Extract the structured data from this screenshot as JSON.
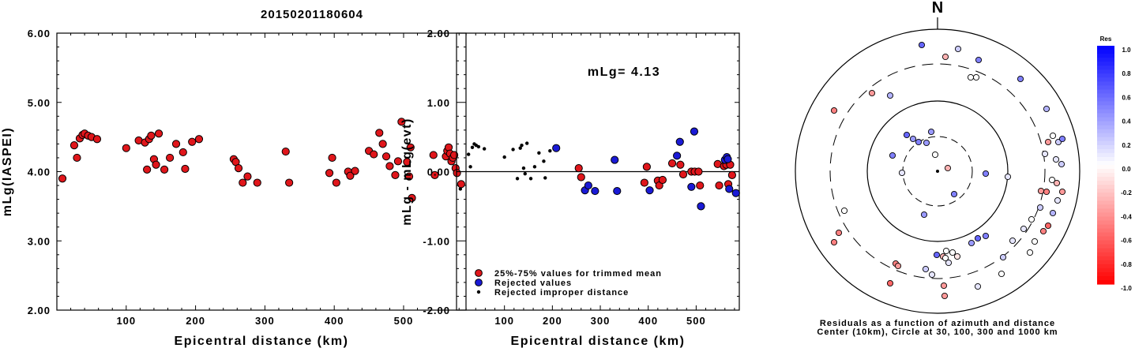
{
  "page_title": "20150201180604",
  "chart_data": [
    {
      "type": "scatter",
      "name": "magnitude-vs-distance",
      "xlabel": "Epicentral distance (km)",
      "ylabel": "mLg(IASPEI)",
      "xlim": [
        0,
        590
      ],
      "ylim": [
        2.0,
        6.0
      ],
      "xticks": [
        "100",
        "200",
        "300",
        "400",
        "500"
      ],
      "xtick_values": [
        100,
        200,
        300,
        400,
        500
      ],
      "yticks": [
        "2.00",
        "3.00",
        "4.00",
        "5.00",
        "6.00"
      ],
      "ytick_values": [
        2.0,
        3.0,
        4.0,
        5.0,
        6.0
      ],
      "marker_color": "#e0161b",
      "points": [
        [
          8,
          3.9
        ],
        [
          25,
          4.38
        ],
        [
          29,
          4.2
        ],
        [
          33,
          4.48
        ],
        [
          37,
          4.53
        ],
        [
          40,
          4.55
        ],
        [
          45,
          4.52
        ],
        [
          50,
          4.5
        ],
        [
          58,
          4.47
        ],
        [
          100,
          4.34
        ],
        [
          118,
          4.45
        ],
        [
          127,
          4.42
        ],
        [
          130,
          4.03
        ],
        [
          133,
          4.47
        ],
        [
          136,
          4.52
        ],
        [
          140,
          4.18
        ],
        [
          143,
          4.1
        ],
        [
          147,
          4.55
        ],
        [
          155,
          4.03
        ],
        [
          163,
          4.2
        ],
        [
          172,
          4.4
        ],
        [
          182,
          4.28
        ],
        [
          185,
          4.04
        ],
        [
          195,
          4.43
        ],
        [
          205,
          4.47
        ],
        [
          255,
          4.18
        ],
        [
          258,
          4.14
        ],
        [
          262,
          4.05
        ],
        [
          268,
          3.84
        ],
        [
          275,
          3.93
        ],
        [
          289,
          3.84
        ],
        [
          330,
          4.29
        ],
        [
          335,
          3.84
        ],
        [
          393,
          3.98
        ],
        [
          397,
          4.2
        ],
        [
          403,
          3.84
        ],
        [
          420,
          4.0
        ],
        [
          423,
          3.94
        ],
        [
          430,
          4.01
        ],
        [
          450,
          4.3
        ],
        [
          457,
          4.25
        ],
        [
          465,
          4.56
        ],
        [
          470,
          4.4
        ],
        [
          475,
          4.22
        ],
        [
          480,
          4.08
        ],
        [
          488,
          3.95
        ],
        [
          492,
          4.15
        ],
        [
          497,
          4.72
        ],
        [
          505,
          4.14
        ],
        [
          508,
          3.93
        ],
        [
          510,
          4.35
        ],
        [
          512,
          3.62
        ],
        [
          543,
          4.24
        ],
        [
          545,
          3.95
        ],
        [
          561,
          4.22
        ],
        [
          563,
          4.3
        ],
        [
          565,
          4.35
        ],
        [
          567,
          4.26
        ],
        [
          569,
          4.15
        ],
        [
          571,
          4.2
        ],
        [
          573,
          4.24
        ],
        [
          575,
          4.05
        ],
        [
          577,
          3.98
        ],
        [
          583,
          3.82
        ]
      ]
    },
    {
      "type": "scatter",
      "name": "residual-vs-distance",
      "xlabel": "Epicentral distance (km)",
      "ylabel": "mLg - mLg(evt)",
      "xlim": [
        0,
        590
      ],
      "ylim": [
        -2.0,
        2.0
      ],
      "xticks": [
        "100",
        "200",
        "300",
        "400",
        "500"
      ],
      "xtick_values": [
        100,
        200,
        300,
        400,
        500
      ],
      "yticks": [
        "-2.00",
        "-1.00",
        "0.00",
        "1.00",
        "2.00"
      ],
      "ytick_values": [
        -2.0,
        -1.0,
        0.0,
        1.0,
        2.0
      ],
      "annotation": "mLg= 4.13",
      "legend": [
        {
          "label": "25%-75% values for trimmed mean",
          "color": "#e0161b",
          "kind": "large"
        },
        {
          "label": "Rejected values",
          "color": "#1a1ad6",
          "kind": "large"
        },
        {
          "label": "Rejected improper distance",
          "color": "#000000",
          "kind": "small"
        }
      ],
      "series": [
        {
          "name": "trimmed",
          "color": "#e0161b",
          "points": [
            [
              255,
              0.05
            ],
            [
              260,
              -0.08
            ],
            [
              392,
              -0.16
            ],
            [
              397,
              0.07
            ],
            [
              420,
              -0.13
            ],
            [
              423,
              -0.2
            ],
            [
              430,
              -0.12
            ],
            [
              450,
              0.12
            ],
            [
              467,
              0.1
            ],
            [
              473,
              -0.04
            ],
            [
              490,
              0.0
            ],
            [
              497,
              0.0
            ],
            [
              505,
              0.0
            ],
            [
              508,
              -0.2
            ],
            [
              545,
              0.11
            ],
            [
              548,
              -0.2
            ],
            [
              558,
              0.08
            ],
            [
              563,
              0.1
            ],
            [
              567,
              -0.18
            ],
            [
              571,
              0.1
            ],
            [
              575,
              -0.05
            ]
          ]
        },
        {
          "name": "rejected",
          "color": "#1a1ad6",
          "points": [
            [
              208,
              0.34
            ],
            [
              268,
              -0.27
            ],
            [
              275,
              -0.2
            ],
            [
              289,
              -0.28
            ],
            [
              330,
              0.17
            ],
            [
              335,
              -0.28
            ],
            [
              403,
              -0.27
            ],
            [
              460,
              0.23
            ],
            [
              466,
              0.43
            ],
            [
              490,
              -0.22
            ],
            [
              496,
              0.58
            ],
            [
              510,
              -0.5
            ],
            [
              560,
              0.17
            ],
            [
              564,
              0.21
            ],
            [
              566,
              0.18
            ],
            [
              569,
              -0.25
            ],
            [
              583,
              -0.31
            ]
          ]
        },
        {
          "name": "improper-distance",
          "color": "#000000",
          "points": [
            [
              8,
              -0.25
            ],
            [
              25,
              0.25
            ],
            [
              29,
              0.07
            ],
            [
              33,
              0.35
            ],
            [
              37,
              0.4
            ],
            [
              41,
              0.38
            ],
            [
              46,
              0.36
            ],
            [
              58,
              0.33
            ],
            [
              100,
              0.21
            ],
            [
              118,
              0.32
            ],
            [
              127,
              -0.1
            ],
            [
              133,
              0.34
            ],
            [
              136,
              0.38
            ],
            [
              140,
              0.05
            ],
            [
              143,
              -0.03
            ],
            [
              147,
              0.41
            ],
            [
              155,
              -0.1
            ],
            [
              163,
              0.07
            ],
            [
              172,
              0.27
            ],
            [
              182,
              0.15
            ],
            [
              185,
              -0.09
            ],
            [
              195,
              0.3
            ]
          ]
        }
      ]
    },
    {
      "type": "scatter",
      "name": "residual-azimuth-map",
      "north_label": "N",
      "caption": [
        "Residuals as a function of azimuth and distance",
        "Center (10km), Circle at 30, 100, 300 and 1000 km"
      ],
      "colorbar": {
        "title": "Res",
        "labels": [
          "1.0",
          "0.8",
          "0.6",
          "0.4",
          "0.2",
          "0.0",
          "-0.2",
          "-0.4",
          "-0.6",
          "-0.8",
          "-1.0"
        ],
        "values": [
          1.0,
          0.8,
          0.6,
          0.4,
          0.2,
          0.0,
          -0.2,
          -0.4,
          -0.6,
          -0.8,
          -1.0
        ]
      },
      "stations": [
        [
          1167,
          57,
          0.6
        ],
        [
          1197,
          72,
          -0.3
        ],
        [
          1213,
          62,
          0.2
        ],
        [
          1239,
          76,
          0.5
        ],
        [
          1229,
          98,
          0.0
        ],
        [
          1236,
          98,
          0.0
        ],
        [
          1292,
          100,
          0.5
        ],
        [
          1325,
          138,
          0.3
        ],
        [
          1127,
          121,
          0.3
        ],
        [
          1104,
          118,
          -0.4
        ],
        [
          1056,
          140,
          -0.5
        ],
        [
          1148,
          171,
          0.6
        ],
        [
          1156,
          176,
          0.4
        ],
        [
          1163,
          180,
          0.5
        ],
        [
          1173,
          181,
          0.4
        ],
        [
          1179,
          167,
          0.4
        ],
        [
          1130,
          197,
          0.5
        ],
        [
          1142,
          219,
          0.1
        ],
        [
          1200,
          213,
          -0.3
        ],
        [
          1248,
          220,
          0.5
        ],
        [
          1276,
          224,
          0.1
        ],
        [
          1208,
          246,
          0.5
        ],
        [
          1170,
          272,
          0.4
        ],
        [
          1069,
          267,
          0.0
        ],
        [
          1062,
          295,
          -0.5
        ],
        [
          1056,
          307,
          -0.5
        ],
        [
          1333,
          172,
          0.0
        ],
        [
          1340,
          180,
          0.2
        ],
        [
          1345,
          176,
          0.5
        ],
        [
          1327,
          180,
          -0.4
        ],
        [
          1323,
          195,
          0.1
        ],
        [
          1337,
          202,
          0.1
        ],
        [
          1344,
          208,
          0.2
        ],
        [
          1332,
          228,
          0.0
        ],
        [
          1338,
          232,
          -0.3
        ],
        [
          1345,
          243,
          -0.4
        ],
        [
          1325,
          243,
          -0.5
        ],
        [
          1318,
          242,
          -0.4
        ],
        [
          1339,
          254,
          0.1
        ],
        [
          1333,
          270,
          0.3
        ],
        [
          1317,
          263,
          0.2
        ],
        [
          1327,
          286,
          -0.6
        ],
        [
          1321,
          293,
          -0.5
        ],
        [
          1306,
          278,
          0.0
        ],
        [
          1296,
          290,
          0.1
        ],
        [
          1310,
          306,
          0.0
        ],
        [
          1304,
          320,
          0.0
        ],
        [
          1270,
          326,
          0.2
        ],
        [
          1282,
          305,
          0.1
        ],
        [
          1248,
          299,
          0.5
        ],
        [
          1238,
          302,
          0.6
        ],
        [
          1230,
          308,
          0.4
        ],
        [
          1186,
          323,
          0.6
        ],
        [
          1198,
          318,
          0.0
        ],
        [
          1206,
          320,
          0.0
        ],
        [
          1194,
          325,
          -0.3
        ],
        [
          1212,
          325,
          -0.1
        ],
        [
          1197,
          327,
          0.0
        ],
        [
          1201,
          333,
          0.1
        ],
        [
          1172,
          341,
          0.2
        ],
        [
          1180,
          348,
          0.1
        ],
        [
          1134,
          334,
          -0.5
        ],
        [
          1137,
          337,
          -0.4
        ],
        [
          1127,
          359,
          -0.6
        ],
        [
          1195,
          362,
          -0.4
        ],
        [
          1196,
          375,
          -0.4
        ],
        [
          1238,
          363,
          0.1
        ],
        [
          1268,
          347,
          0.0
        ],
        [
          1184,
          196,
          0.0
        ]
      ]
    }
  ]
}
